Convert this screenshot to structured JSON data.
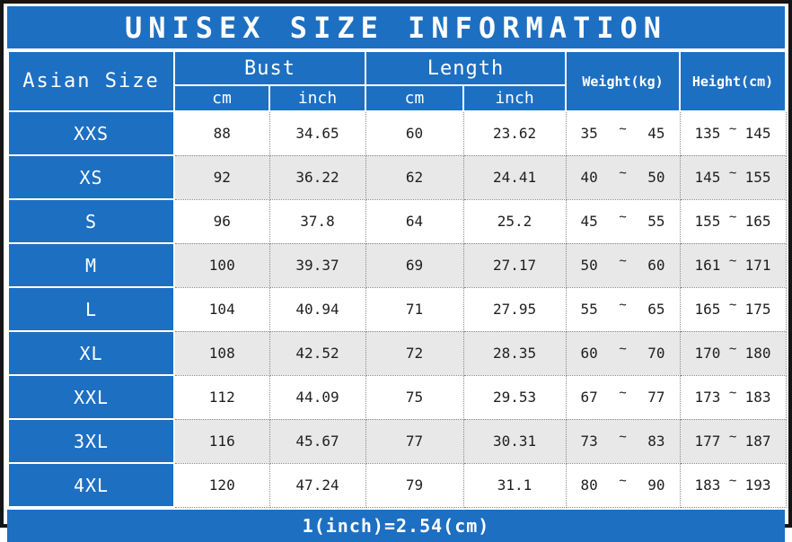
{
  "page": {
    "title": "UNISEX SIZE INFORMATION",
    "footer_note": "1(inch)=2.54(cm)"
  },
  "colors": {
    "header_blue": "#1d6fc2",
    "alt_row_gray": "#e8e8e8",
    "frame_black": "#151515",
    "data_text": "#1f1f1f"
  },
  "header": {
    "corner": "Asian Size",
    "bust": "Bust",
    "length": "Length",
    "weight": "Weight(kg)",
    "height": "Height(cm)",
    "units": [
      "cm",
      "inch",
      "cm",
      "inch"
    ],
    "tilde": "~"
  },
  "chart_data": {
    "type": "table",
    "title": "UNISEX SIZE INFORMATION",
    "columns": [
      "Asian Size",
      "Bust cm",
      "Bust inch",
      "Length cm",
      "Length inch",
      "Weight(kg)",
      "Height(cm)"
    ],
    "rows": [
      {
        "size": "XXS",
        "bust_cm": "88",
        "bust_inch": "34.65",
        "length_cm": "60",
        "length_inch": "23.62",
        "weight": [
          "35",
          "45"
        ],
        "height": [
          "135",
          "145"
        ]
      },
      {
        "size": "XS",
        "bust_cm": "92",
        "bust_inch": "36.22",
        "length_cm": "62",
        "length_inch": "24.41",
        "weight": [
          "40",
          "50"
        ],
        "height": [
          "145",
          "155"
        ]
      },
      {
        "size": "S",
        "bust_cm": "96",
        "bust_inch": "37.8",
        "length_cm": "64",
        "length_inch": "25.2",
        "weight": [
          "45",
          "55"
        ],
        "height": [
          "155",
          "165"
        ]
      },
      {
        "size": "M",
        "bust_cm": "100",
        "bust_inch": "39.37",
        "length_cm": "69",
        "length_inch": "27.17",
        "weight": [
          "50",
          "60"
        ],
        "height": [
          "161",
          "171"
        ]
      },
      {
        "size": "L",
        "bust_cm": "104",
        "bust_inch": "40.94",
        "length_cm": "71",
        "length_inch": "27.95",
        "weight": [
          "55",
          "65"
        ],
        "height": [
          "165",
          "175"
        ]
      },
      {
        "size": "XL",
        "bust_cm": "108",
        "bust_inch": "42.52",
        "length_cm": "72",
        "length_inch": "28.35",
        "weight": [
          "60",
          "70"
        ],
        "height": [
          "170",
          "180"
        ]
      },
      {
        "size": "XXL",
        "bust_cm": "112",
        "bust_inch": "44.09",
        "length_cm": "75",
        "length_inch": "29.53",
        "weight": [
          "67",
          "77"
        ],
        "height": [
          "173",
          "183"
        ]
      },
      {
        "size": "3XL",
        "bust_cm": "116",
        "bust_inch": "45.67",
        "length_cm": "77",
        "length_inch": "30.31",
        "weight": [
          "73",
          "83"
        ],
        "height": [
          "177",
          "187"
        ]
      },
      {
        "size": "4XL",
        "bust_cm": "120",
        "bust_inch": "47.24",
        "length_cm": "79",
        "length_inch": "31.1",
        "weight": [
          "80",
          "90"
        ],
        "height": [
          "183",
          "193"
        ]
      }
    ],
    "footnote": "1(inch)=2.54(cm)"
  }
}
